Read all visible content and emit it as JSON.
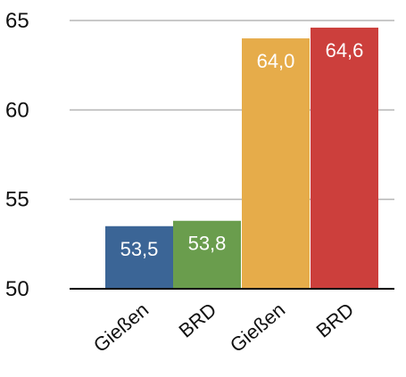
{
  "chart_data": {
    "type": "bar",
    "categories": [
      "Gießen",
      "BRD",
      "Gießen",
      "BRD"
    ],
    "values": [
      53.5,
      53.8,
      64.0,
      64.6
    ],
    "value_labels": [
      "53,5",
      "53,8",
      "64,0",
      "64,6"
    ],
    "bar_colors": [
      "#3b6596",
      "#6a9d4d",
      "#e6ac4a",
      "#cc3f3c"
    ],
    "y_ticks": [
      50,
      55,
      60,
      65
    ],
    "ylim": [
      50,
      65
    ],
    "title": "",
    "xlabel": "",
    "ylabel": "",
    "grid": true,
    "legend": "none"
  }
}
